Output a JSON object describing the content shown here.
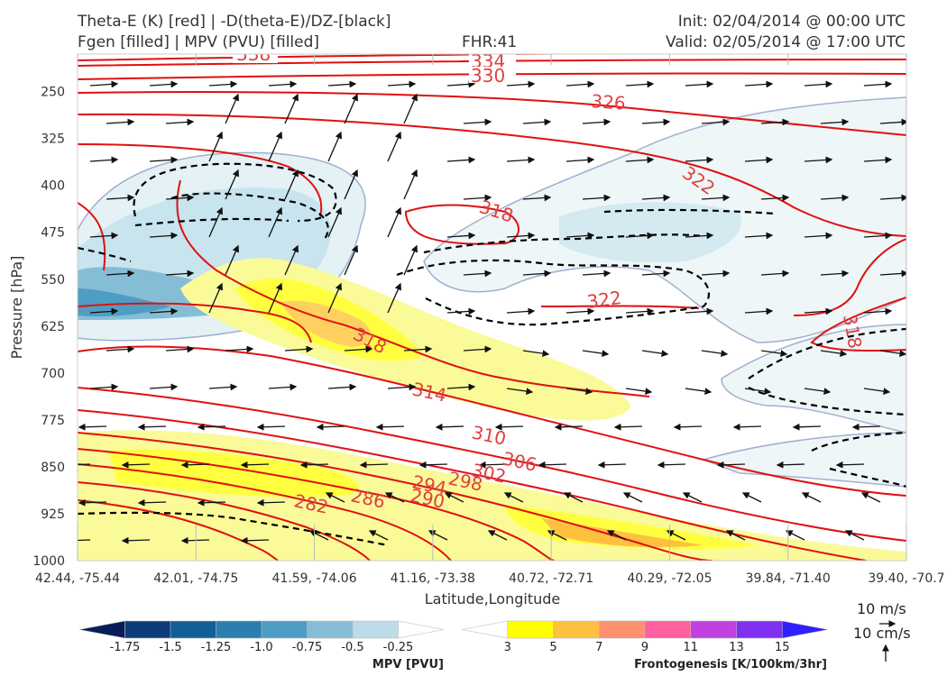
{
  "header": {
    "title_left_1": "Theta-E (K) [red] | -D(theta-E)/DZ-[black]",
    "title_left_2": "Fgen [filled] | MPV (PVU) [filled]",
    "fhr": "FHR:41",
    "init": "Init: 02/04/2014 @ 00:00 UTC",
    "valid": "Valid: 02/05/2014 @ 17:00 UTC"
  },
  "colors": {
    "theta_e": "#e01010",
    "ddz": "#000000",
    "fgen_3": "#ffff00",
    "fgen_5": "#ffc040",
    "fgen_7": "#ff9070",
    "fgen_9": "#ff60a0",
    "fgen_11": "#c040e0",
    "fgen_13": "#8030f0",
    "fgen_15": "#3020ff",
    "mpv_light": "#c8e4ee",
    "mpv_mid": "#7ab8d0",
    "mpv_dark": "#3a8cb0"
  },
  "chart_data": {
    "type": "cross-section",
    "title": "Theta-E (K) [red] | -D(theta-E)/DZ-[black] / Fgen [filled] | MPV (PVU) [filled]",
    "xlabel": "Latitude,Longitude",
    "ylabel": "Pressure [hPa]",
    "x_ticks": [
      "42.44, -75.44",
      "42.01, -74.75",
      "41.59, -74.06",
      "41.16, -73.38",
      "40.72, -72.71",
      "40.29, -72.05",
      "39.84, -71.40",
      "39.40, -70.7"
    ],
    "y_ticks": [
      250,
      325,
      400,
      475,
      550,
      625,
      700,
      775,
      850,
      925,
      1000
    ],
    "ylim": [
      1000,
      190
    ],
    "y_scale": "linear, inverted",
    "theta_e_contour_labels": [
      "338",
      "334",
      "330",
      "326",
      "322",
      "318",
      "322",
      "318",
      "314",
      "310",
      "306",
      "302",
      "298",
      "294",
      "290",
      "286",
      "282",
      "318"
    ],
    "theta_e_levels": [
      282,
      286,
      290,
      294,
      298,
      302,
      306,
      310,
      314,
      318,
      322,
      326,
      330,
      334,
      338
    ],
    "wind_reference": {
      "horizontal": "10 m/s",
      "vertical": "10 cm/s"
    },
    "mpv_colorbar": {
      "title": "MPV [PVU]",
      "ticks": [
        "-1.75",
        "-1.5",
        "-1.25",
        "-1.0",
        "-0.75",
        "-0.5",
        "-0.25"
      ],
      "colors": [
        "#081d58",
        "#0c3d78",
        "#135e96",
        "#2a7faf",
        "#4f9dc4",
        "#86bdd6",
        "#bcdde8",
        "#ffffff"
      ]
    },
    "fgen_colorbar": {
      "title": "Frontogenesis [K/100km/3hr]",
      "ticks": [
        "3",
        "5",
        "7",
        "9",
        "11",
        "13",
        "15"
      ],
      "colors": [
        "#ffffff",
        "#ffff00",
        "#ffc040",
        "#ff9070",
        "#ff60a0",
        "#c040e0",
        "#8030f0",
        "#3020ff"
      ]
    }
  }
}
